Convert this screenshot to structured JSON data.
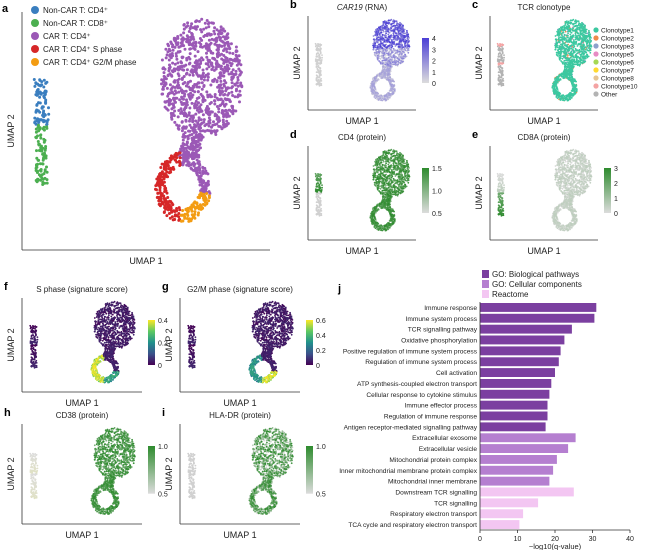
{
  "panels": {
    "a": {
      "letter": "a",
      "legend": [
        {
          "label": "Non-CAR T: CD4⁺",
          "color": "#3a7ebf"
        },
        {
          "label": "Non-CAR T: CD8⁺",
          "color": "#4caf50"
        },
        {
          "label": "CAR T: CD4⁺",
          "color": "#9b59b6"
        },
        {
          "label": "CAR T: CD4⁺ S phase",
          "color": "#d62728"
        },
        {
          "label": "CAR T: CD4⁺ G2/M phase",
          "color": "#f39c12"
        }
      ],
      "xlabel": "UMAP 1",
      "ylabel": "UMAP 2"
    },
    "b": {
      "letter": "b",
      "title": "CAR19",
      "title_suffix": " (RNA)",
      "cbar_ticks": [
        "4",
        "3",
        "2",
        "1",
        "0"
      ],
      "low": "#dcdcdc",
      "high": "#4b3fd6"
    },
    "c": {
      "letter": "c",
      "title": "TCR clonotype",
      "legend": [
        {
          "label": "Clonotype1",
          "color": "#3cc8a0"
        },
        {
          "label": "Clonotype2",
          "color": "#f08a4b"
        },
        {
          "label": "Clonotype3",
          "color": "#8da0cb"
        },
        {
          "label": "Clonotype5",
          "color": "#e78ac3"
        },
        {
          "label": "Clonotype6",
          "color": "#a6d854"
        },
        {
          "label": "Clonotype7",
          "color": "#ffd92f"
        },
        {
          "label": "Clonotype8",
          "color": "#e5c494"
        },
        {
          "label": "Clonotype10",
          "color": "#f4a3a3"
        },
        {
          "label": "Other",
          "color": "#b3b3b3"
        }
      ]
    },
    "d": {
      "letter": "d",
      "title": "CD4 (protein)",
      "cbar_ticks": [
        "1.5",
        "1.0",
        "0.5"
      ],
      "low": "#dcdcdc",
      "high": "#2e8b2e"
    },
    "e": {
      "letter": "e",
      "title": "CD8A (protein)",
      "cbar_ticks": [
        "3",
        "2",
        "1",
        "0"
      ],
      "low": "#dcdcdc",
      "high": "#2e8b2e"
    },
    "f": {
      "letter": "f",
      "title": "S phase (signature score)",
      "cbar_ticks": [
        "0.4",
        "0.2",
        "0"
      ]
    },
    "g": {
      "letter": "g",
      "title": "G2/M phase (signature score)",
      "cbar_ticks": [
        "0.6",
        "0.4",
        "0.2",
        "0"
      ]
    },
    "h": {
      "letter": "h",
      "title": "CD38 (protein)",
      "cbar_ticks": [
        "1.0",
        "0.5"
      ],
      "low": "#dcdcdc",
      "high": "#2e8b2e"
    },
    "i": {
      "letter": "i",
      "title": "HLA-DR (protein)",
      "cbar_ticks": [
        "1.0",
        "0.5"
      ],
      "low": "#dcdcdc",
      "high": "#2e8b2e"
    },
    "j": {
      "letter": "j"
    }
  },
  "axis_labels": {
    "x": "UMAP 1",
    "y": "UMAP 2"
  },
  "chart_data": {
    "type": "bar",
    "orientation": "horizontal",
    "title": "",
    "xlabel": "−log10(q-value)",
    "xlim": [
      0,
      40
    ],
    "xticks": [
      "0",
      "10",
      "20",
      "30",
      "40"
    ],
    "legend": [
      {
        "name": "GO: Biological pathways",
        "color": "#7b3fa0"
      },
      {
        "name": "GO: Cellular components",
        "color": "#b57fd0"
      },
      {
        "name": "Reactome",
        "color": "#f3c6f2"
      }
    ],
    "categories": [
      "Immune response",
      "Immune system process",
      "TCR signalling pathway",
      "Oxidative phosphorylation",
      "Positive regulation of immune system process",
      "Regulation of immune system process",
      "Cell activation",
      "ATP synthesis-coupled electron transport",
      "Cellular response to cytokine stimulus",
      "Immune effector process",
      "Regulation of immune response",
      "Antigen receptor-mediated signalling pathway",
      "Extracellular exosome",
      "Extracellular vesicle",
      "Mitochondrial protein complex",
      "Inner mitochondrial membrane protein complex",
      "Mitochondrial inner membrane",
      "Downstream TCR signalling",
      "TCR signalling",
      "Respiratory electron transport",
      "TCA cycle and respiratory electron transport"
    ],
    "values": [
      31,
      30.5,
      24.5,
      22.5,
      21.5,
      21,
      20,
      19,
      18.5,
      18,
      18,
      17.5,
      25.5,
      23.5,
      20.5,
      19.5,
      18.5,
      25,
      15.5,
      11.5,
      10.5
    ],
    "groups": [
      0,
      0,
      0,
      0,
      0,
      0,
      0,
      0,
      0,
      0,
      0,
      0,
      1,
      1,
      1,
      1,
      1,
      2,
      2,
      2,
      2
    ]
  }
}
